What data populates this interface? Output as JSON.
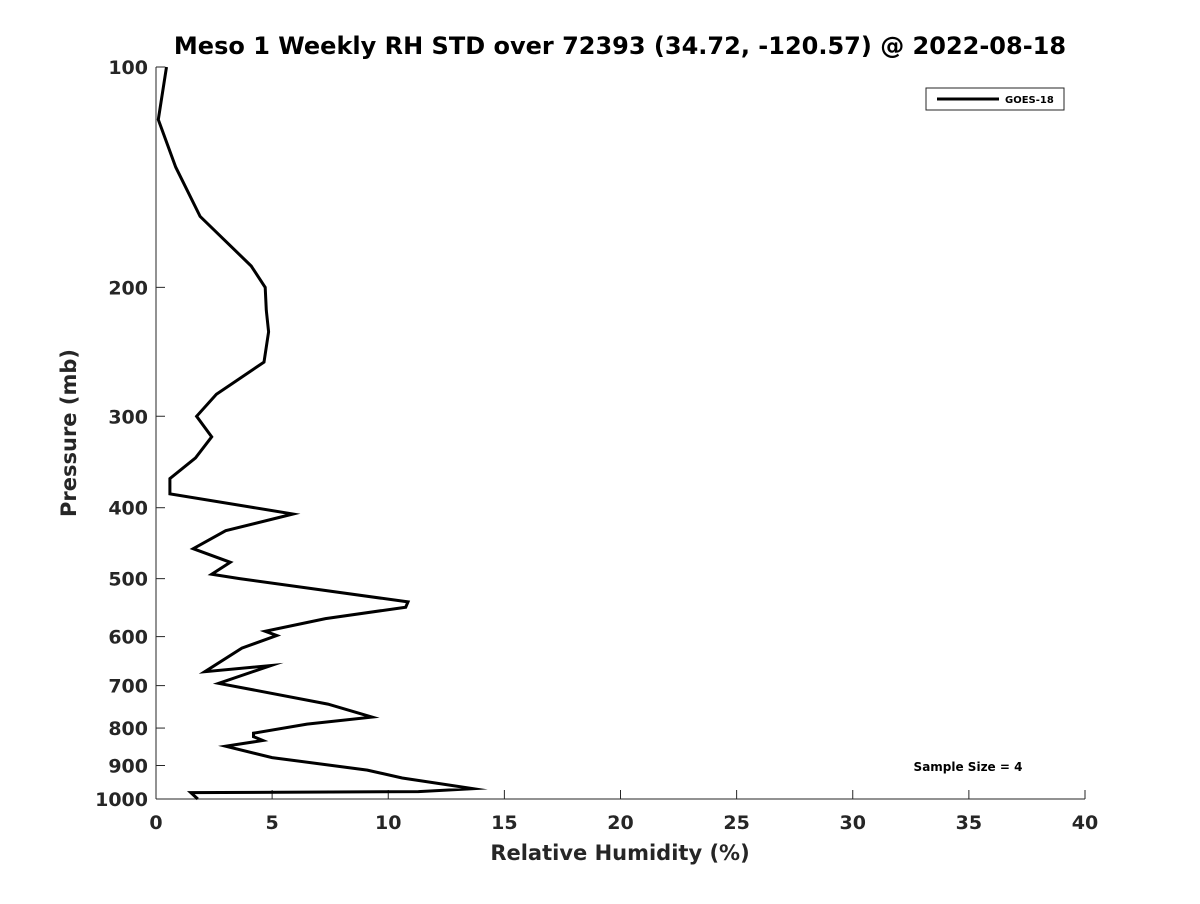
{
  "chart_data": {
    "type": "line",
    "title": "Meso 1 Weekly RH STD over 72393 (34.72, -120.57) @ 2022-08-18",
    "xlabel": "Relative Humidity (%)",
    "ylabel": "Pressure (mb)",
    "xlim": [
      0,
      40
    ],
    "ylim": [
      100,
      1000
    ],
    "y_scale": "log",
    "y_reversed": true,
    "x_ticks": [
      "0",
      "5",
      "10",
      "15",
      "20",
      "25",
      "30",
      "35",
      "40"
    ],
    "y_ticks": [
      "100",
      "200",
      "300",
      "400",
      "500",
      "600",
      "700",
      "800",
      "900",
      "1000"
    ],
    "grid": false,
    "legend_position": "top-right",
    "annotation": "Sample Size = 4",
    "series": [
      {
        "name": "GOES-18",
        "color": "#000000",
        "x": [
          0.45,
          0.1,
          0.85,
          1.9,
          4.1,
          4.7,
          4.75,
          4.85,
          4.65,
          2.6,
          1.75,
          2.4,
          1.7,
          0.6,
          0.6,
          5.9,
          3.0,
          1.6,
          3.2,
          2.4,
          3.6,
          10.85,
          10.75,
          7.3,
          4.7,
          5.2,
          3.7,
          2.1,
          4.95,
          2.7,
          7.4,
          9.3,
          6.5,
          4.2,
          4.2,
          4.6,
          3.0,
          5.0,
          9.1,
          10.6,
          13.65,
          11.3,
          1.5,
          1.8
        ],
        "y": [
          100,
          118,
          137,
          160,
          187,
          200,
          215,
          230,
          253,
          280,
          300,
          320,
          342,
          365,
          383,
          408,
          430,
          455,
          475,
          493,
          500,
          538,
          547,
          567,
          590,
          598,
          622,
          670,
          657,
          695,
          742,
          773,
          790,
          813,
          822,
          832,
          847,
          878,
          913,
          936,
          968,
          977,
          980,
          1000
        ]
      }
    ]
  }
}
